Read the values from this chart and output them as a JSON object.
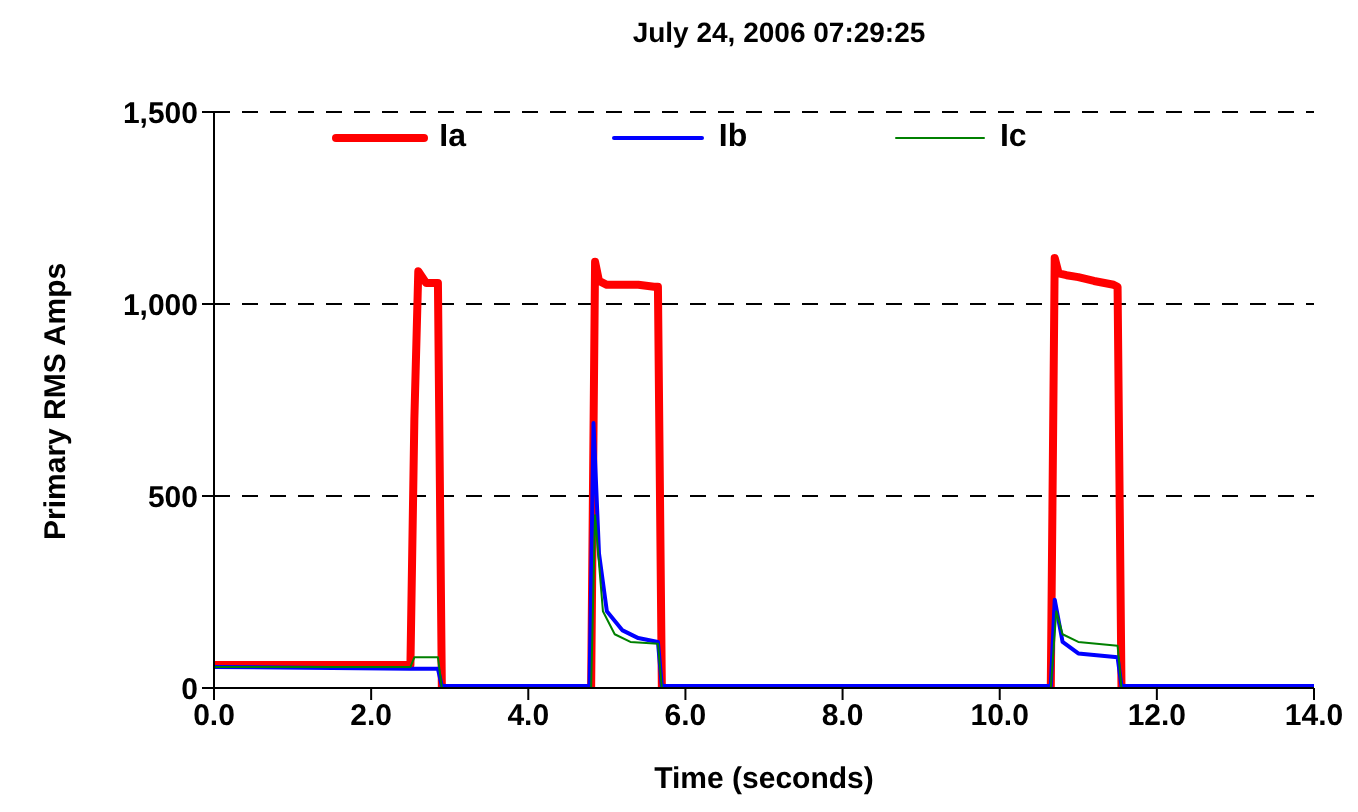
{
  "chart_data": {
    "type": "line",
    "title": "July 24, 2006 07:29:25",
    "xlabel": "Time (seconds)",
    "ylabel": "Primary RMS Amps",
    "xlim": [
      0,
      14
    ],
    "xticks": [
      {
        "value": 0,
        "label": "0.0"
      },
      {
        "value": 2,
        "label": "2.0"
      },
      {
        "value": 4,
        "label": "4.0"
      },
      {
        "value": 6,
        "label": "6.0"
      },
      {
        "value": 8,
        "label": "8.0"
      },
      {
        "value": 10,
        "label": "10.0"
      },
      {
        "value": 12,
        "label": "12.0"
      },
      {
        "value": 14,
        "label": "14.0"
      }
    ],
    "ylim": [
      0,
      1500
    ],
    "yticks": [
      0,
      {
        "value": 500,
        "label": "500"
      },
      {
        "value": 1000,
        "label": "1,000"
      },
      {
        "value": 1500,
        "label": "1,500"
      }
    ],
    "grid": "y",
    "legend": "top",
    "marker": "none",
    "line_style": "solid",
    "series": [
      {
        "name": "Ia",
        "color": "#ff0000",
        "x": [
          0,
          1,
          2,
          2.5,
          2.55,
          2.6,
          2.7,
          2.8,
          2.85,
          2.9,
          3.5,
          4.8,
          4.85,
          4.9,
          5.0,
          5.2,
          5.4,
          5.6,
          5.65,
          5.7,
          8,
          10.65,
          10.7,
          10.75,
          10.85,
          11.0,
          11.2,
          11.45,
          11.5,
          11.55,
          14
        ],
        "values": [
          60,
          60,
          60,
          60,
          700,
          1085,
          1055,
          1055,
          1055,
          0,
          0,
          0,
          1110,
          1060,
          1050,
          1050,
          1050,
          1045,
          1045,
          0,
          0,
          0,
          1120,
          1080,
          1075,
          1070,
          1060,
          1050,
          1045,
          0,
          0
        ]
      },
      {
        "name": "Ib",
        "color": "#0000ff",
        "x": [
          0,
          2.5,
          2.85,
          2.9,
          4.78,
          4.83,
          4.9,
          5.0,
          5.2,
          5.4,
          5.65,
          5.7,
          10.65,
          10.7,
          10.8,
          11.0,
          11.5,
          11.55,
          14
        ],
        "values": [
          55,
          50,
          50,
          5,
          5,
          690,
          350,
          200,
          150,
          130,
          120,
          5,
          5,
          230,
          120,
          90,
          80,
          5,
          5
        ]
      },
      {
        "name": "Ic",
        "color": "#008000",
        "x": [
          0,
          2.5,
          2.55,
          2.85,
          2.9,
          4.8,
          4.85,
          4.95,
          5.1,
          5.3,
          5.65,
          5.7,
          10.65,
          10.72,
          10.8,
          11.0,
          11.5,
          11.55,
          14
        ],
        "values": [
          55,
          55,
          80,
          80,
          0,
          0,
          450,
          200,
          140,
          120,
          115,
          0,
          0,
          200,
          140,
          120,
          110,
          0,
          0
        ]
      }
    ]
  }
}
